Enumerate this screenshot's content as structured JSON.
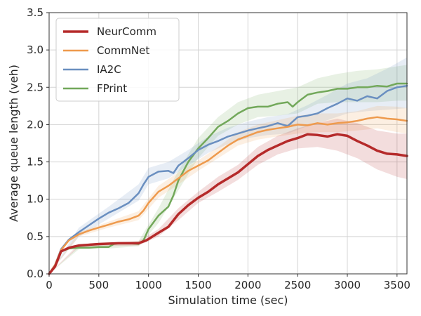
{
  "chart_data": {
    "type": "line",
    "title": "",
    "xlabel": "Simulation time (sec)",
    "ylabel": "Average queue length (veh)",
    "xlim": [
      0,
      3600
    ],
    "ylim": [
      0,
      3.5
    ],
    "x_ticks": [
      0,
      500,
      1000,
      1500,
      2000,
      2500,
      3000,
      3500
    ],
    "y_ticks": [
      "0.0",
      "0.5",
      "1.0",
      "1.5",
      "2.0",
      "2.5",
      "3.0",
      "3.5"
    ],
    "grid": true,
    "legend_position": "upper-left",
    "series": [
      {
        "name": "NeurComm",
        "color": "#b52a2a",
        "linewidth": 3.5,
        "points": [
          [
            0,
            0
          ],
          [
            60,
            0.1
          ],
          [
            120,
            0.3
          ],
          [
            200,
            0.35
          ],
          [
            300,
            0.38
          ],
          [
            500,
            0.4
          ],
          [
            700,
            0.41
          ],
          [
            900,
            0.41
          ],
          [
            980,
            0.45
          ],
          [
            1100,
            0.55
          ],
          [
            1200,
            0.63
          ],
          [
            1300,
            0.8
          ],
          [
            1400,
            0.92
          ],
          [
            1500,
            1.02
          ],
          [
            1600,
            1.1
          ],
          [
            1700,
            1.2
          ],
          [
            1800,
            1.28
          ],
          [
            1900,
            1.36
          ],
          [
            2000,
            1.47
          ],
          [
            2100,
            1.58
          ],
          [
            2200,
            1.66
          ],
          [
            2300,
            1.72
          ],
          [
            2400,
            1.78
          ],
          [
            2500,
            1.82
          ],
          [
            2600,
            1.87
          ],
          [
            2700,
            1.86
          ],
          [
            2800,
            1.84
          ],
          [
            2900,
            1.87
          ],
          [
            3000,
            1.85
          ],
          [
            3100,
            1.78
          ],
          [
            3200,
            1.72
          ],
          [
            3300,
            1.65
          ],
          [
            3400,
            1.61
          ],
          [
            3500,
            1.6
          ],
          [
            3600,
            1.58
          ]
        ],
        "band": [
          [
            0,
            0,
            0
          ],
          [
            300,
            0.36,
            0.4
          ],
          [
            900,
            0.38,
            0.44
          ],
          [
            1100,
            0.5,
            0.6
          ],
          [
            1300,
            0.72,
            0.88
          ],
          [
            1500,
            0.95,
            1.1
          ],
          [
            1700,
            1.1,
            1.3
          ],
          [
            1900,
            1.26,
            1.46
          ],
          [
            2100,
            1.46,
            1.7
          ],
          [
            2300,
            1.6,
            1.85
          ],
          [
            2500,
            1.68,
            1.95
          ],
          [
            2700,
            1.7,
            2.02
          ],
          [
            2900,
            1.65,
            2.08
          ],
          [
            3100,
            1.55,
            2.02
          ],
          [
            3300,
            1.4,
            1.92
          ],
          [
            3500,
            1.3,
            1.88
          ],
          [
            3600,
            1.27,
            1.88
          ]
        ]
      },
      {
        "name": "CommNet",
        "color": "#ee9a4d",
        "linewidth": 2.5,
        "points": [
          [
            0,
            0
          ],
          [
            60,
            0.12
          ],
          [
            120,
            0.32
          ],
          [
            200,
            0.45
          ],
          [
            300,
            0.53
          ],
          [
            400,
            0.58
          ],
          [
            500,
            0.62
          ],
          [
            600,
            0.66
          ],
          [
            700,
            0.7
          ],
          [
            800,
            0.73
          ],
          [
            900,
            0.78
          ],
          [
            950,
            0.85
          ],
          [
            1000,
            0.95
          ],
          [
            1100,
            1.1
          ],
          [
            1200,
            1.18
          ],
          [
            1300,
            1.28
          ],
          [
            1400,
            1.38
          ],
          [
            1500,
            1.45
          ],
          [
            1600,
            1.52
          ],
          [
            1700,
            1.62
          ],
          [
            1800,
            1.72
          ],
          [
            1900,
            1.8
          ],
          [
            2000,
            1.85
          ],
          [
            2100,
            1.9
          ],
          [
            2200,
            1.93
          ],
          [
            2300,
            1.95
          ],
          [
            2400,
            1.97
          ],
          [
            2500,
            2.0
          ],
          [
            2600,
            1.99
          ],
          [
            2700,
            2.02
          ],
          [
            2800,
            2.0
          ],
          [
            2900,
            2.02
          ],
          [
            3000,
            2.03
          ],
          [
            3100,
            2.05
          ],
          [
            3200,
            2.08
          ],
          [
            3300,
            2.1
          ],
          [
            3400,
            2.08
          ],
          [
            3500,
            2.07
          ],
          [
            3600,
            2.05
          ]
        ],
        "band": [
          [
            0,
            0,
            0
          ],
          [
            300,
            0.5,
            0.56
          ],
          [
            600,
            0.62,
            0.7
          ],
          [
            900,
            0.72,
            0.84
          ],
          [
            1100,
            1.02,
            1.18
          ],
          [
            1300,
            1.2,
            1.36
          ],
          [
            1500,
            1.38,
            1.52
          ],
          [
            1700,
            1.55,
            1.7
          ],
          [
            1900,
            1.72,
            1.9
          ],
          [
            2100,
            1.8,
            2.0
          ],
          [
            2300,
            1.84,
            2.06
          ],
          [
            2500,
            1.88,
            2.12
          ],
          [
            2700,
            1.9,
            2.15
          ],
          [
            2900,
            1.9,
            2.15
          ],
          [
            3100,
            1.92,
            2.18
          ],
          [
            3300,
            1.95,
            2.25
          ],
          [
            3500,
            1.9,
            2.24
          ],
          [
            3600,
            1.88,
            2.22
          ]
        ]
      },
      {
        "name": "IA2C",
        "color": "#6a8fc0",
        "linewidth": 2.5,
        "points": [
          [
            0,
            0
          ],
          [
            60,
            0.12
          ],
          [
            120,
            0.33
          ],
          [
            200,
            0.46
          ],
          [
            300,
            0.56
          ],
          [
            400,
            0.65
          ],
          [
            500,
            0.74
          ],
          [
            600,
            0.82
          ],
          [
            700,
            0.88
          ],
          [
            800,
            0.95
          ],
          [
            900,
            1.08
          ],
          [
            950,
            1.2
          ],
          [
            1000,
            1.3
          ],
          [
            1100,
            1.37
          ],
          [
            1200,
            1.38
          ],
          [
            1250,
            1.35
          ],
          [
            1300,
            1.45
          ],
          [
            1400,
            1.55
          ],
          [
            1500,
            1.66
          ],
          [
            1600,
            1.73
          ],
          [
            1700,
            1.78
          ],
          [
            1800,
            1.84
          ],
          [
            1900,
            1.88
          ],
          [
            2000,
            1.92
          ],
          [
            2100,
            1.95
          ],
          [
            2200,
            1.98
          ],
          [
            2300,
            2.02
          ],
          [
            2400,
            1.98
          ],
          [
            2500,
            2.1
          ],
          [
            2600,
            2.12
          ],
          [
            2700,
            2.15
          ],
          [
            2800,
            2.22
          ],
          [
            2900,
            2.28
          ],
          [
            3000,
            2.35
          ],
          [
            3100,
            2.32
          ],
          [
            3200,
            2.38
          ],
          [
            3300,
            2.35
          ],
          [
            3400,
            2.45
          ],
          [
            3500,
            2.5
          ],
          [
            3600,
            2.52
          ]
        ],
        "band": [
          [
            0,
            0,
            0
          ],
          [
            300,
            0.5,
            0.62
          ],
          [
            600,
            0.74,
            0.9
          ],
          [
            900,
            0.98,
            1.2
          ],
          [
            1000,
            1.2,
            1.42
          ],
          [
            1200,
            1.28,
            1.5
          ],
          [
            1400,
            1.45,
            1.66
          ],
          [
            1600,
            1.62,
            1.84
          ],
          [
            1800,
            1.74,
            1.96
          ],
          [
            2000,
            1.82,
            2.04
          ],
          [
            2200,
            1.86,
            2.1
          ],
          [
            2400,
            1.88,
            2.14
          ],
          [
            2600,
            1.98,
            2.26
          ],
          [
            2800,
            2.06,
            2.4
          ],
          [
            3000,
            2.15,
            2.55
          ],
          [
            3200,
            2.18,
            2.62
          ],
          [
            3400,
            2.2,
            2.75
          ],
          [
            3600,
            2.22,
            2.9
          ]
        ]
      },
      {
        "name": "FPrint",
        "color": "#72a85a",
        "linewidth": 2.5,
        "points": [
          [
            0,
            0
          ],
          [
            60,
            0.12
          ],
          [
            120,
            0.3
          ],
          [
            200,
            0.34
          ],
          [
            300,
            0.35
          ],
          [
            400,
            0.35
          ],
          [
            500,
            0.36
          ],
          [
            600,
            0.36
          ],
          [
            650,
            0.4
          ],
          [
            700,
            0.41
          ],
          [
            800,
            0.41
          ],
          [
            900,
            0.4
          ],
          [
            950,
            0.45
          ],
          [
            1000,
            0.6
          ],
          [
            1100,
            0.78
          ],
          [
            1200,
            0.9
          ],
          [
            1250,
            1.05
          ],
          [
            1300,
            1.25
          ],
          [
            1400,
            1.5
          ],
          [
            1500,
            1.68
          ],
          [
            1600,
            1.82
          ],
          [
            1700,
            1.97
          ],
          [
            1800,
            2.05
          ],
          [
            1900,
            2.15
          ],
          [
            2000,
            2.22
          ],
          [
            2100,
            2.24
          ],
          [
            2200,
            2.24
          ],
          [
            2300,
            2.28
          ],
          [
            2400,
            2.3
          ],
          [
            2450,
            2.24
          ],
          [
            2500,
            2.3
          ],
          [
            2600,
            2.4
          ],
          [
            2700,
            2.43
          ],
          [
            2800,
            2.45
          ],
          [
            2900,
            2.48
          ],
          [
            3000,
            2.48
          ],
          [
            3100,
            2.5
          ],
          [
            3200,
            2.5
          ],
          [
            3300,
            2.52
          ],
          [
            3400,
            2.51
          ],
          [
            3500,
            2.55
          ],
          [
            3600,
            2.55
          ]
        ],
        "band": [
          [
            0,
            0,
            0
          ],
          [
            300,
            0.33,
            0.37
          ],
          [
            600,
            0.34,
            0.4
          ],
          [
            900,
            0.37,
            0.44
          ],
          [
            1100,
            0.68,
            0.88
          ],
          [
            1300,
            1.12,
            1.38
          ],
          [
            1500,
            1.55,
            1.82
          ],
          [
            1700,
            1.85,
            2.1
          ],
          [
            1900,
            2.0,
            2.3
          ],
          [
            2100,
            2.1,
            2.4
          ],
          [
            2300,
            2.12,
            2.45
          ],
          [
            2500,
            2.15,
            2.5
          ],
          [
            2700,
            2.28,
            2.62
          ],
          [
            2900,
            2.3,
            2.68
          ],
          [
            3100,
            2.3,
            2.72
          ],
          [
            3300,
            2.3,
            2.74
          ],
          [
            3500,
            2.32,
            2.78
          ],
          [
            3600,
            2.32,
            2.8
          ]
        ]
      }
    ]
  }
}
